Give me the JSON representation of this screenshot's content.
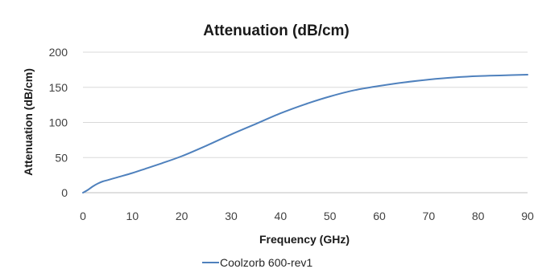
{
  "chart_data": {
    "type": "line",
    "title": "Attenuation (dB/cm)",
    "xlabel": "Frequency (GHz)",
    "ylabel": "Attenuation (dB/cm)",
    "xlim": [
      0,
      90
    ],
    "ylim": [
      0,
      200
    ],
    "x_ticks": [
      0,
      10,
      20,
      30,
      40,
      50,
      60,
      70,
      80,
      90
    ],
    "y_ticks": [
      0,
      50,
      100,
      150,
      200
    ],
    "grid": "horizontal",
    "legend_position": "bottom",
    "series": [
      {
        "name": "Coolzorb 600-rev1",
        "color": "#4f81bd",
        "x": [
          0,
          1,
          2,
          3,
          4,
          5,
          7,
          10,
          13,
          16,
          20,
          25,
          30,
          35,
          40,
          45,
          50,
          55,
          60,
          65,
          70,
          75,
          80,
          85,
          90
        ],
        "y": [
          0,
          4,
          9,
          13,
          16,
          18,
          22,
          28,
          35,
          42,
          52,
          67,
          83,
          98,
          113,
          126,
          137,
          146,
          152,
          157,
          161,
          164,
          166,
          167,
          168
        ]
      }
    ]
  }
}
